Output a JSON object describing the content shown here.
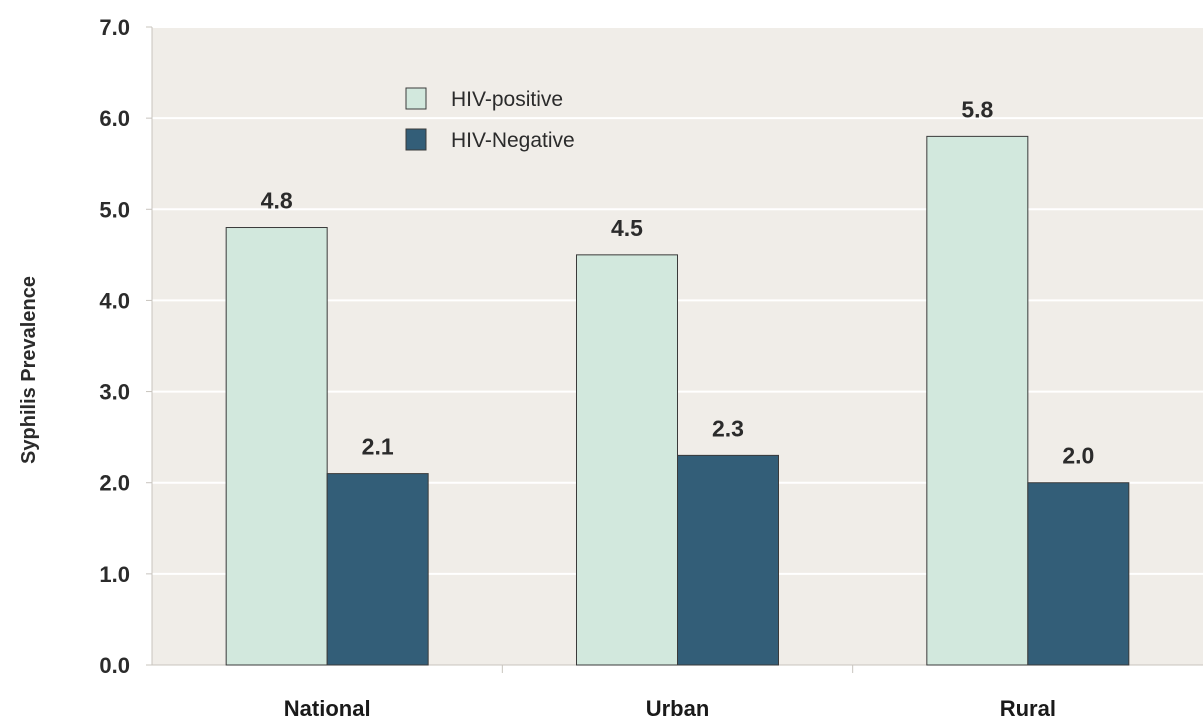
{
  "chart_data": {
    "type": "bar",
    "title": "",
    "xlabel": "",
    "ylabel": "Syphilis Prevalence",
    "categories": [
      "National",
      "Urban",
      "Rural"
    ],
    "series": [
      {
        "name": "HIV-positive",
        "values": [
          4.8,
          4.5,
          5.8
        ],
        "color": "#d2e8dd",
        "label_texts": [
          "4.8",
          "4.5",
          "5.8"
        ]
      },
      {
        "name": "HIV-Negative",
        "values": [
          2.1,
          2.3,
          2.0
        ],
        "color": "#335e78",
        "label_texts": [
          "2.1",
          "2.3",
          "2.0"
        ]
      }
    ],
    "ylim": [
      0,
      7
    ],
    "yticks": [
      "0.0",
      "1.0",
      "2.0",
      "3.0",
      "4.0",
      "5.0",
      "6.0",
      "7.0"
    ],
    "grid": true,
    "legend_position": "top-center",
    "plot_background": "#f0ede8",
    "gridline_color": "#ffffff"
  }
}
